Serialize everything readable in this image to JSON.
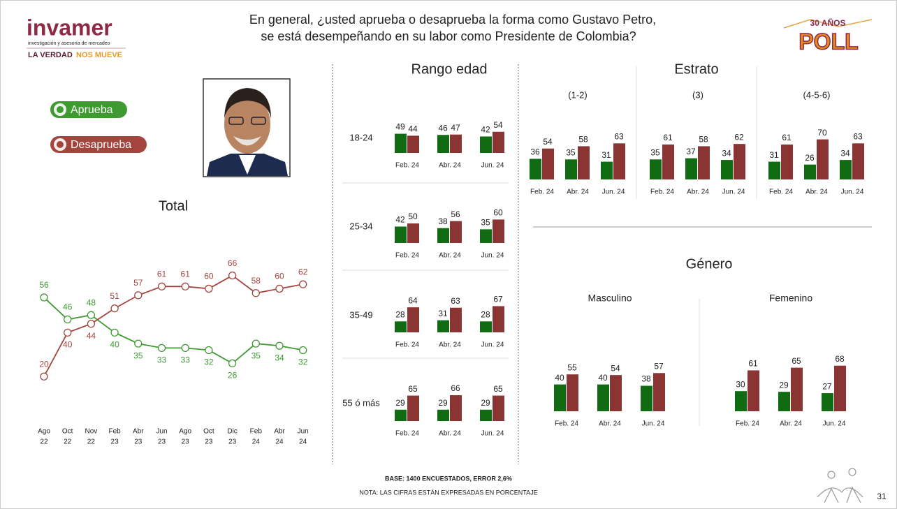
{
  "header": {
    "question": [
      "En general, ¿usted aprueba o desaprueba la forma como Gustavo Petro,",
      "se está desempeñando en su labor como Presidente de Colombia?"
    ]
  },
  "logo": {
    "name": "invamer",
    "tagline": "investigación y asesoría de mercadeo",
    "slogan": [
      "LA VERDAD",
      "NOS MUEVE"
    ]
  },
  "badge": {
    "top": "30 AÑOS",
    "main": "POLL"
  },
  "sections": {
    "age": "Rango edad",
    "strata": "Estrato",
    "gender": "Género"
  },
  "chart_data": [
    {
      "type": "line",
      "title": "Total",
      "categories": [
        [
          "Ago",
          "22"
        ],
        [
          "Oct",
          "22"
        ],
        [
          "Nov",
          "22"
        ],
        [
          "Feb",
          "23"
        ],
        [
          "Abr",
          "23"
        ],
        [
          "Jun",
          "23"
        ],
        [
          "Ago",
          "23"
        ],
        [
          "Oct",
          "23"
        ],
        [
          "Dic",
          "23"
        ],
        [
          "Feb",
          "24"
        ],
        [
          "Abr",
          "24"
        ],
        [
          "Jun",
          "24"
        ]
      ],
      "series": [
        {
          "name": "Aprueba",
          "color": "#3f9a32",
          "values": [
            56,
            46,
            48,
            40,
            35,
            33,
            33,
            32,
            26,
            35,
            34,
            32
          ]
        },
        {
          "name": "Desaprueba",
          "color": "#a4453d",
          "values": [
            20,
            40,
            44,
            51,
            57,
            61,
            61,
            60,
            66,
            58,
            60,
            62
          ]
        }
      ],
      "ylim": [
        15,
        70
      ]
    },
    {
      "type": "bar",
      "title": "18-24",
      "categories": [
        "Feb. 24",
        "Abr. 24",
        "Jun. 24"
      ],
      "ylim": [
        0,
        100
      ],
      "series": [
        {
          "color": "#106b12",
          "values": [
            49,
            46,
            42
          ]
        },
        {
          "color": "#8b3434",
          "values": [
            44,
            47,
            54
          ]
        }
      ]
    },
    {
      "type": "bar",
      "title": "25-34",
      "categories": [
        "Feb. 24",
        "Abr. 24",
        "Jun. 24"
      ],
      "ylim": [
        0,
        100
      ],
      "series": [
        {
          "color": "#106b12",
          "values": [
            42,
            38,
            35
          ]
        },
        {
          "color": "#8b3434",
          "values": [
            50,
            56,
            60
          ]
        }
      ]
    },
    {
      "type": "bar",
      "title": "35-49",
      "categories": [
        "Feb. 24",
        "Abr. 24",
        "Jun. 24"
      ],
      "ylim": [
        0,
        100
      ],
      "series": [
        {
          "color": "#106b12",
          "values": [
            28,
            31,
            28
          ]
        },
        {
          "color": "#8b3434",
          "values": [
            64,
            63,
            67
          ]
        }
      ]
    },
    {
      "type": "bar",
      "title": "55 ó más",
      "categories": [
        "Feb. 24",
        "Abr. 24",
        "Jun. 24"
      ],
      "ylim": [
        0,
        100
      ],
      "series": [
        {
          "color": "#106b12",
          "values": [
            29,
            29,
            29
          ]
        },
        {
          "color": "#8b3434",
          "values": [
            65,
            66,
            65
          ]
        }
      ]
    },
    {
      "type": "bar",
      "title": "(1-2)",
      "categories": [
        "Feb. 24",
        "Abr. 24",
        "Jun. 24"
      ],
      "ylim": [
        0,
        100
      ],
      "series": [
        {
          "color": "#106b12",
          "values": [
            36,
            35,
            31
          ]
        },
        {
          "color": "#8b3434",
          "values": [
            54,
            58,
            63
          ]
        }
      ]
    },
    {
      "type": "bar",
      "title": "(3)",
      "categories": [
        "Feb. 24",
        "Abr. 24",
        "Jun. 24"
      ],
      "ylim": [
        0,
        100
      ],
      "series": [
        {
          "color": "#106b12",
          "values": [
            35,
            37,
            34
          ]
        },
        {
          "color": "#8b3434",
          "values": [
            61,
            58,
            62
          ]
        }
      ]
    },
    {
      "type": "bar",
      "title": "(4-5-6)",
      "categories": [
        "Feb. 24",
        "Abr. 24",
        "Jun. 24"
      ],
      "ylim": [
        0,
        100
      ],
      "series": [
        {
          "color": "#106b12",
          "values": [
            31,
            26,
            34
          ]
        },
        {
          "color": "#8b3434",
          "values": [
            61,
            70,
            63
          ]
        }
      ]
    },
    {
      "type": "bar",
      "title": "Masculino",
      "categories": [
        "Feb. 24",
        "Abr. 24",
        "Jun. 24"
      ],
      "ylim": [
        0,
        100
      ],
      "series": [
        {
          "color": "#106b12",
          "values": [
            40,
            40,
            38
          ]
        },
        {
          "color": "#8b3434",
          "values": [
            55,
            54,
            57
          ]
        }
      ]
    },
    {
      "type": "bar",
      "title": "Femenino",
      "categories": [
        "Feb. 24",
        "Abr. 24",
        "Jun. 24"
      ],
      "ylim": [
        0,
        100
      ],
      "series": [
        {
          "color": "#106b12",
          "values": [
            30,
            29,
            27
          ]
        },
        {
          "color": "#8b3434",
          "values": [
            61,
            65,
            68
          ]
        }
      ]
    }
  ],
  "footer": {
    "base": "BASE: 1400 ENCUESTADOS, ERROR 2,6%",
    "note": "NOTA: LAS CIFRAS ESTÁN EXPRESADAS EN PORCENTAJE",
    "page": "31"
  }
}
